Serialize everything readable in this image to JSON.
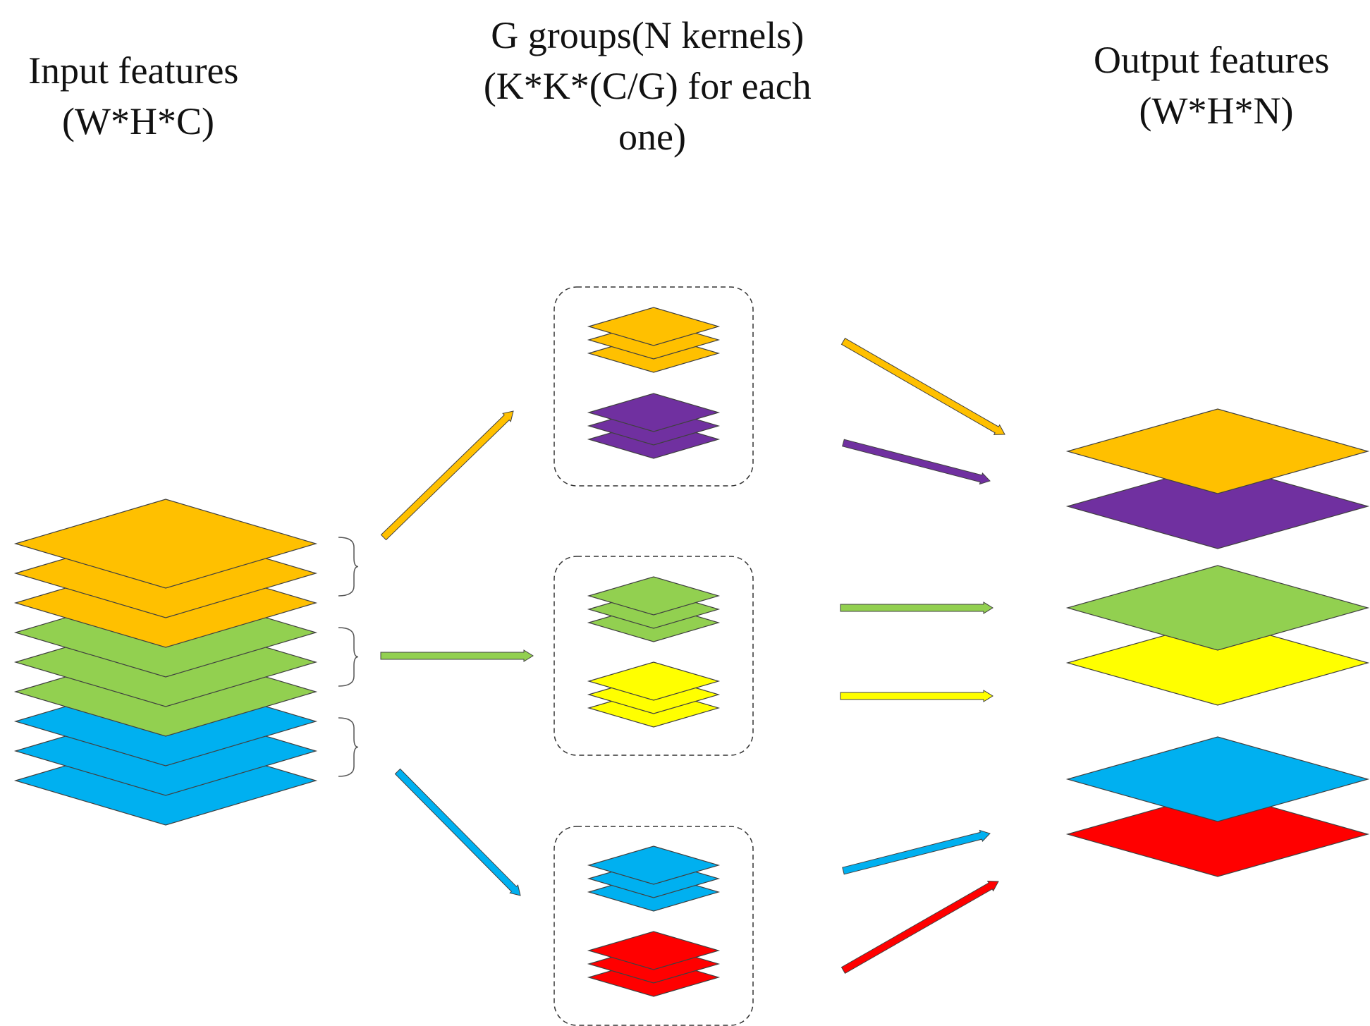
{
  "labels": {
    "input": [
      "Input features",
      "(W*H*C)"
    ],
    "kernels": [
      "G groups(N kernels)",
      "(K*K*(C/G) for each",
      "one)"
    ],
    "output": [
      "Output features",
      "(W*H*N)"
    ]
  },
  "colors": {
    "orange": "#FFC000",
    "green": "#92D050",
    "blue": "#00B0F0",
    "purple": "#7030A0",
    "yellow": "#FFFF00",
    "red": "#FF0000",
    "outline": "#404040"
  },
  "input_stack": [
    "orange",
    "orange",
    "orange",
    "green",
    "green",
    "green",
    "blue",
    "blue",
    "blue"
  ],
  "kernel_groups": [
    {
      "stacks": [
        [
          "orange",
          "orange",
          "orange"
        ],
        [
          "purple",
          "purple",
          "purple"
        ]
      ]
    },
    {
      "stacks": [
        [
          "green",
          "green",
          "green"
        ],
        [
          "yellow",
          "yellow",
          "yellow"
        ]
      ]
    },
    {
      "stacks": [
        [
          "blue",
          "blue",
          "blue"
        ],
        [
          "red",
          "red",
          "red"
        ]
      ]
    }
  ],
  "output_pairs": [
    [
      "orange",
      "purple"
    ],
    [
      "green",
      "yellow"
    ],
    [
      "blue",
      "red"
    ]
  ],
  "arrows_in": [
    "orange",
    "green",
    "blue"
  ],
  "arrows_out": [
    "orange",
    "purple",
    "green",
    "yellow",
    "blue",
    "red"
  ]
}
